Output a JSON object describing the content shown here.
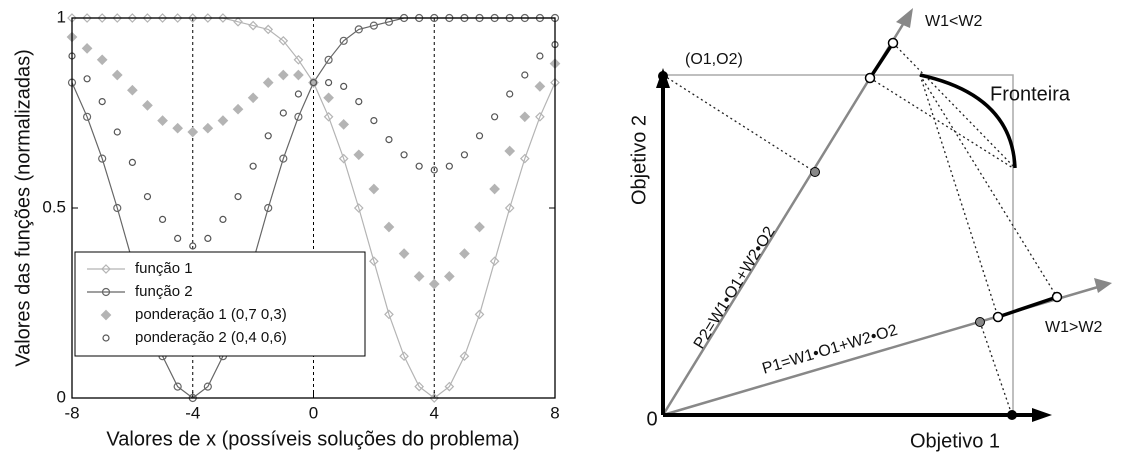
{
  "chart_data": {
    "type": "line",
    "xlabel": "Valores de x (possíveis soluções do problema)",
    "ylabel": "Valores das funções (normalizadas)",
    "x": [
      -8,
      -7.5,
      -7,
      -6.5,
      -6,
      -5.5,
      -5,
      -4.5,
      -4,
      -3.5,
      -3,
      -2.5,
      -2,
      -1.5,
      -1,
      -0.5,
      0,
      0.5,
      1,
      1.5,
      2,
      2.5,
      3,
      3.5,
      4,
      4.5,
      5,
      5.5,
      6,
      6.5,
      7,
      7.5,
      8
    ],
    "series": [
      {
        "name": "função 1",
        "color": "#b4b4b4",
        "marker": "diamond",
        "filled": false,
        "line": true,
        "values": [
          1,
          1,
          1,
          1,
          1,
          1,
          1,
          1,
          1,
          1,
          1,
          0.99,
          0.98,
          0.97,
          0.94,
          0.89,
          0.83,
          0.74,
          0.63,
          0.5,
          0.36,
          0.22,
          0.11,
          0.03,
          0,
          0.03,
          0.11,
          0.22,
          0.36,
          0.5,
          0.63,
          0.74,
          0.83
        ]
      },
      {
        "name": "função 2",
        "color": "#666666",
        "marker": "circle",
        "filled": false,
        "line": true,
        "values": [
          0.83,
          0.74,
          0.63,
          0.5,
          0.36,
          0.22,
          0.11,
          0.03,
          0,
          0.03,
          0.11,
          0.22,
          0.36,
          0.5,
          0.63,
          0.74,
          0.83,
          0.89,
          0.94,
          0.97,
          0.98,
          0.99,
          1,
          1,
          1,
          1,
          1,
          1,
          1,
          1,
          1,
          1,
          1
        ]
      },
      {
        "name": "ponderação 1 (0,7 0,3)",
        "color": "#b4b4b4",
        "marker": "diamond",
        "filled": true,
        "line": false,
        "values": [
          0.95,
          0.92,
          0.89,
          0.85,
          0.81,
          0.77,
          0.73,
          0.71,
          0.7,
          0.71,
          0.73,
          0.76,
          0.79,
          0.83,
          0.85,
          0.85,
          0.83,
          0.79,
          0.72,
          0.64,
          0.55,
          0.45,
          0.38,
          0.32,
          0.3,
          0.32,
          0.38,
          0.45,
          0.55,
          0.65,
          0.74,
          0.82,
          0.88
        ]
      },
      {
        "name": "ponderação 2 (0,4 0,6)",
        "color": "#555555",
        "marker": "circle",
        "filled": false,
        "line": false,
        "values": [
          0.9,
          0.84,
          0.78,
          0.7,
          0.62,
          0.53,
          0.47,
          0.42,
          0.4,
          0.42,
          0.47,
          0.53,
          0.61,
          0.69,
          0.75,
          0.8,
          0.83,
          0.83,
          0.82,
          0.78,
          0.73,
          0.68,
          0.64,
          0.61,
          0.6,
          0.61,
          0.64,
          0.69,
          0.74,
          0.8,
          0.85,
          0.9,
          0.93
        ]
      }
    ],
    "xlim": [
      -8,
      8
    ],
    "xticks": [
      -8,
      -4,
      0,
      4,
      8
    ],
    "ylim": [
      0,
      1
    ],
    "yticks": [
      0,
      0.5,
      1
    ],
    "xgrid": true,
    "legend": "lower left"
  },
  "diagram": {
    "corner": "(O1,O2)",
    "y_axis": "Objetivo 2",
    "x_axis": "Objetivo 1",
    "origin": "0",
    "upper_ray": "W1<W2",
    "lower_ray": "W1>W2",
    "frontier": "Fronteira",
    "upper_formula": "P2=W1•O1+W2•O2",
    "lower_formula": "P1=W1•O1+W2•O2"
  }
}
